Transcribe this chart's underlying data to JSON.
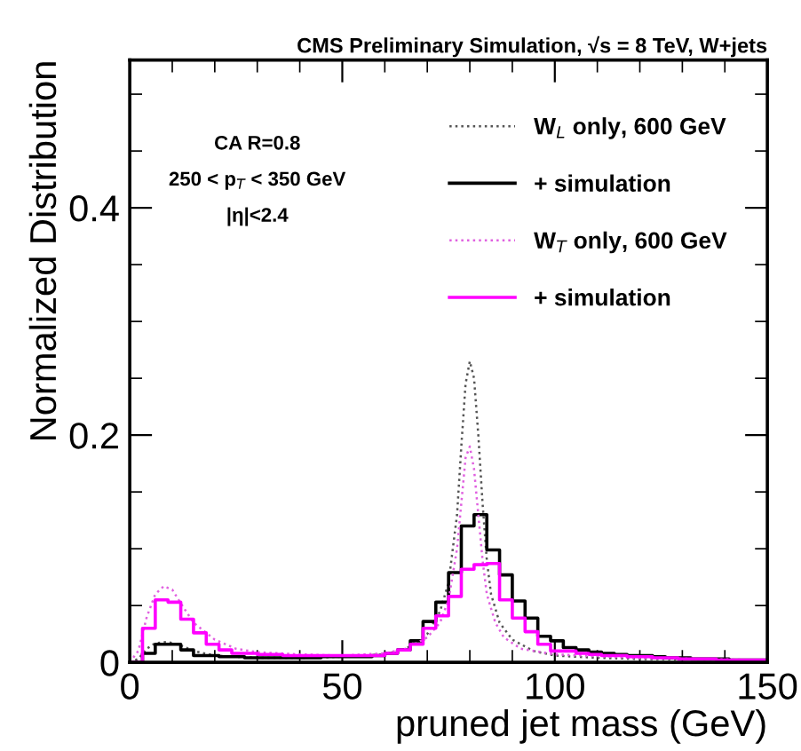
{
  "chart_data": {
    "type": "line",
    "title": "CMS Preliminary Simulation, √s = 8 TeV, W+jets",
    "xlabel": "pruned jet mass (GeV)",
    "ylabel": "Normalized Distribution",
    "annotations": [
      "CA R=0.8",
      "250 < p$_{T}$ < 350 GeV",
      "|η|<2.4"
    ],
    "xlim": [
      0,
      150
    ],
    "ylim": [
      0,
      0.53
    ],
    "xticks": [
      0,
      {
        "value": 10,
        "label": null
      },
      {
        "value": 20,
        "label": null
      },
      {
        "value": 30,
        "label": null
      },
      {
        "value": 40,
        "label": null
      },
      50,
      {
        "value": 60,
        "label": null
      },
      {
        "value": 70,
        "label": null
      },
      {
        "value": 80,
        "label": null
      },
      {
        "value": 90,
        "label": null
      },
      100,
      {
        "value": 110,
        "label": null
      },
      {
        "value": 120,
        "label": null
      },
      {
        "value": 130,
        "label": null
      },
      {
        "value": 140,
        "label": null
      },
      150
    ],
    "yticks": [
      0,
      {
        "value": 0.05,
        "label": null
      },
      {
        "value": 0.1,
        "label": null
      },
      {
        "value": 0.15,
        "label": null
      },
      0.2,
      {
        "value": 0.25,
        "label": null
      },
      {
        "value": 0.3,
        "label": null
      },
      {
        "value": 0.35,
        "label": null
      },
      0.4,
      {
        "value": 0.45,
        "label": null
      },
      {
        "value": 0.5,
        "label": null
      }
    ],
    "grid": false,
    "legend": "top right",
    "series": [
      {
        "name": "W$_{L}$ only, 600 GeV",
        "line_style": "dotted",
        "color": "#555555",
        "x": [
          0,
          2,
          4,
          6,
          9,
          12,
          15,
          20,
          30,
          40,
          50,
          60,
          65,
          70,
          73,
          75,
          77,
          78,
          79,
          80,
          81,
          82,
          83,
          84,
          85,
          87,
          90,
          95,
          100,
          110,
          120,
          150
        ],
        "values": [
          0,
          0.003,
          0.012,
          0.017,
          0.018,
          0.015,
          0.01,
          0.006,
          0.004,
          0.004,
          0.005,
          0.007,
          0.012,
          0.025,
          0.045,
          0.07,
          0.13,
          0.19,
          0.245,
          0.265,
          0.25,
          0.2,
          0.14,
          0.09,
          0.06,
          0.035,
          0.02,
          0.01,
          0.006,
          0.004,
          0.003,
          0.002
        ]
      },
      {
        "name": "+ simulation",
        "type": "step",
        "line_style": "solid",
        "color": "#000000",
        "x": [
          0,
          3,
          6,
          9,
          12,
          15,
          18,
          21,
          24,
          27,
          30,
          33,
          36,
          39,
          42,
          45,
          48,
          51,
          54,
          57,
          60,
          63,
          66,
          69,
          72,
          75,
          78,
          81,
          84,
          87,
          90,
          93,
          96,
          99,
          102,
          105,
          108,
          111,
          114,
          117,
          120,
          123,
          126,
          129,
          132,
          135,
          138,
          141,
          144,
          147,
          150
        ],
        "values": [
          0,
          0.008,
          0.016,
          0.016,
          0.011,
          0.006,
          0.006,
          0.005,
          0.005,
          0.004,
          0.004,
          0.004,
          0.004,
          0.004,
          0.004,
          0.005,
          0.005,
          0.005,
          0.005,
          0.006,
          0.008,
          0.011,
          0.019,
          0.036,
          0.053,
          0.079,
          0.12,
          0.13,
          0.099,
          0.077,
          0.054,
          0.039,
          0.023,
          0.019,
          0.013,
          0.011,
          0.009,
          0.008,
          0.007,
          0.006,
          0.006,
          0.005,
          0.004,
          0.004,
          0.003,
          0.003,
          0.003,
          0.002,
          0.002,
          0.002,
          0.002
        ]
      },
      {
        "name": "W$_{T}$ only, 600 GeV",
        "line_style": "dotted",
        "color": "#e060e0",
        "x": [
          0,
          2,
          4,
          6,
          8,
          10,
          12,
          15,
          20,
          25,
          30,
          40,
          50,
          60,
          65,
          70,
          73,
          75,
          77,
          78,
          79,
          80,
          81,
          82,
          83,
          84,
          86,
          88,
          92,
          100,
          120,
          150
        ],
        "values": [
          0,
          0.01,
          0.04,
          0.06,
          0.067,
          0.064,
          0.052,
          0.035,
          0.02,
          0.012,
          0.009,
          0.007,
          0.006,
          0.008,
          0.012,
          0.022,
          0.035,
          0.055,
          0.1,
          0.14,
          0.18,
          0.19,
          0.17,
          0.13,
          0.09,
          0.06,
          0.035,
          0.022,
          0.012,
          0.007,
          0.004,
          0.002
        ]
      },
      {
        "name": "+ simulation",
        "type": "step",
        "line_style": "solid",
        "color": "#ff00ff",
        "x": [
          0,
          3,
          6,
          9,
          12,
          15,
          18,
          21,
          24,
          27,
          30,
          33,
          36,
          39,
          42,
          45,
          48,
          51,
          54,
          57,
          60,
          63,
          66,
          69,
          72,
          75,
          78,
          81,
          84,
          87,
          90,
          93,
          96,
          99,
          102,
          105,
          108,
          111,
          114,
          117,
          120,
          123,
          126,
          129,
          132,
          135,
          138,
          141,
          144,
          147,
          150
        ],
        "values": [
          0,
          0.03,
          0.055,
          0.053,
          0.038,
          0.026,
          0.016,
          0.011,
          0.008,
          0.008,
          0.007,
          0.007,
          0.006,
          0.006,
          0.006,
          0.006,
          0.006,
          0.006,
          0.006,
          0.006,
          0.008,
          0.011,
          0.016,
          0.03,
          0.041,
          0.058,
          0.082,
          0.086,
          0.087,
          0.055,
          0.039,
          0.027,
          0.016,
          0.01,
          0.01,
          0.008,
          0.007,
          0.006,
          0.006,
          0.005,
          0.005,
          0.004,
          0.004,
          0.003,
          0.003,
          0.003,
          0.002,
          0.002,
          0.002,
          0.002,
          0.002
        ]
      }
    ]
  }
}
